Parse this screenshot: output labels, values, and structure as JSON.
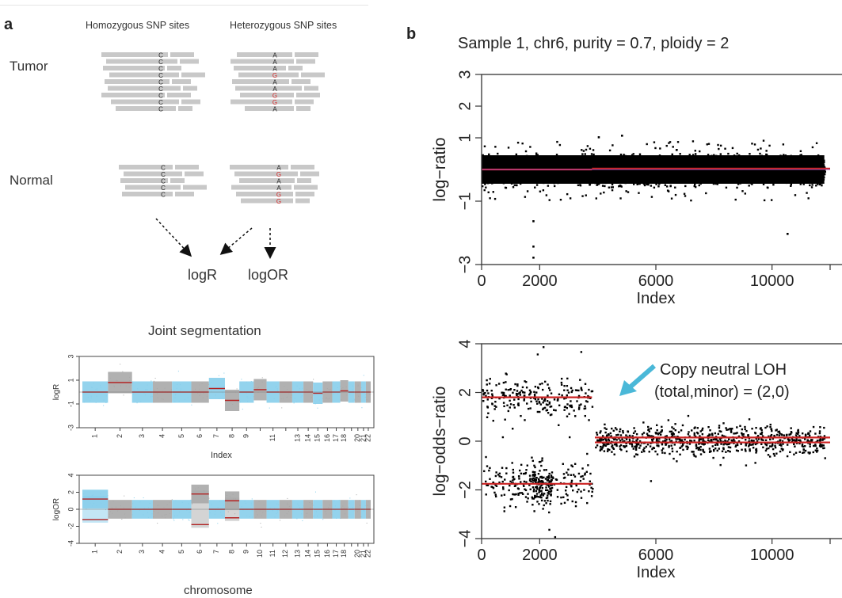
{
  "panel_a": {
    "letter": "a",
    "col_homozygous": "Homozygous SNP sites",
    "col_heterozygous": "Heterozygous SNP sites",
    "row_tumor": "Tumor",
    "row_normal": "Normal",
    "tumor_homo_bases": [
      "C",
      "C",
      "C",
      "C",
      "C",
      "C",
      "C",
      "C",
      "C"
    ],
    "tumor_het_bases": [
      "A",
      "A",
      "A",
      "G",
      "A",
      "A",
      "G",
      "G",
      "A"
    ],
    "normal_homo_bases": [
      "C",
      "C",
      "C",
      "C",
      "C"
    ],
    "normal_het_bases": [
      "A",
      "G",
      "A",
      "A",
      "G",
      "G"
    ],
    "logr_label": "logR",
    "logor_label": "logOR",
    "joint_title": "Joint segmentation",
    "xlabel_index": "Index",
    "xlabel_chrom": "chromosome",
    "colors": {
      "read": "#c8c8c8",
      "ref_base": "#222222",
      "alt_base": "#d62728"
    }
  },
  "panel_b": {
    "letter": "b",
    "title": "Sample 1, chr6, purity = 0.7, ploidy = 2",
    "annotation_line1": "Copy neutral LOH",
    "annotation_line2": "(total,minor) = (2,0)",
    "annotation_arrow_color": "#4ab8d8"
  },
  "chart_data": [
    {
      "type": "scatter",
      "id": "genome-logR",
      "ylabel": "logR",
      "xlabel": "Index",
      "ylim": [
        -3,
        3
      ],
      "yticks": [
        -3,
        -1,
        1,
        3
      ],
      "chromosomes": [
        "1",
        "2",
        "3",
        "4",
        "5",
        "6",
        "7",
        "8",
        "9",
        "10",
        "11",
        "12",
        "13",
        "14",
        "15",
        "16",
        "17",
        "18",
        "19",
        "20",
        "21",
        "22"
      ],
      "tick_labels": [
        "1",
        "2",
        "3",
        "4",
        "5",
        "6",
        "7",
        "8",
        "9",
        "11",
        "13",
        "14",
        "15",
        "16",
        "17",
        "18",
        "20",
        "21",
        "22"
      ],
      "segments": [
        0.0,
        0.8,
        0.0,
        0.0,
        0.0,
        0.0,
        0.3,
        -0.7,
        0.0,
        0.2,
        0.0,
        0.0,
        0.0,
        0.0,
        -0.1,
        0.0,
        0.0,
        0.1,
        0.0,
        0.0,
        0.0,
        0.0
      ],
      "colors": {
        "odd": "#87ceeb",
        "even": "#a9a9a9",
        "segment": "#b22222"
      }
    },
    {
      "type": "scatter",
      "id": "genome-logOR",
      "ylabel": "logOR",
      "xlabel": "chromosome",
      "ylim": [
        -4,
        4
      ],
      "yticks": [
        -4,
        -2,
        0,
        2,
        4
      ],
      "chromosomes": [
        "1",
        "2",
        "3",
        "4",
        "5",
        "6",
        "7",
        "8",
        "9",
        "10",
        "11",
        "12",
        "13",
        "14",
        "15",
        "16",
        "17",
        "18",
        "19",
        "20",
        "21",
        "22"
      ],
      "tick_labels": [
        "1",
        "2",
        "3",
        "4",
        "5",
        "6",
        "7",
        "8",
        "9",
        "10",
        "11",
        "12",
        "13",
        "14",
        "15",
        "16",
        "17",
        "18",
        "20",
        "21",
        "22"
      ],
      "segments": [
        1.2,
        0.0,
        0.0,
        0.0,
        0.0,
        1.8,
        0.0,
        1.0,
        0.0,
        0.0,
        0.0,
        0.0,
        0.0,
        0.0,
        0.0,
        0.0,
        0.0,
        0.0,
        0.0,
        0.0,
        0.0,
        0.0
      ],
      "colors": {
        "odd": "#87ceeb",
        "even": "#a9a9a9",
        "segment": "#b22222"
      }
    },
    {
      "type": "scatter",
      "id": "chr6-logratio",
      "ylabel": "log−ratio",
      "xlabel": "Index",
      "xlim": [
        0,
        12000
      ],
      "xticks": [
        0,
        2000,
        6000,
        10000
      ],
      "ylim": [
        -3,
        3
      ],
      "yticks": [
        -3,
        -1,
        1,
        2,
        3
      ],
      "segments": [
        {
          "x0": 0,
          "x1": 3800,
          "y": 0.0
        },
        {
          "x0": 3800,
          "x1": 12000,
          "y": 0.03
        }
      ],
      "reference_line": 0.0,
      "outliers": [
        {
          "x": 1750,
          "y": -2.4
        },
        {
          "x": 1750,
          "y": -2.75
        },
        {
          "x": 1750,
          "y": -1.6
        },
        {
          "x": 10500,
          "y": -2.0
        },
        {
          "x": 4000,
          "y": 1.05
        },
        {
          "x": 4800,
          "y": 1.1
        }
      ],
      "colors": {
        "points": "#000000",
        "segment": "#cc2222",
        "reference": "#9b4fb5"
      }
    },
    {
      "type": "scatter",
      "id": "chr6-logoddsratio",
      "ylabel": "log−odds−ratio",
      "xlabel": "Index",
      "xlim": [
        0,
        12000
      ],
      "xticks": [
        0,
        2000,
        6000,
        10000
      ],
      "ylim": [
        -4,
        4
      ],
      "yticks": [
        -4,
        -2,
        0,
        2,
        4
      ],
      "segments": [
        {
          "x0": 0,
          "x1": 3800,
          "y": 1.8
        },
        {
          "x0": 0,
          "x1": 3800,
          "y": -1.75
        },
        {
          "x0": 3900,
          "x1": 12000,
          "y": 0.15
        },
        {
          "x0": 3900,
          "x1": 12000,
          "y": -0.05
        }
      ],
      "colors": {
        "points": "#000000",
        "segment": "#cc2222"
      }
    }
  ]
}
